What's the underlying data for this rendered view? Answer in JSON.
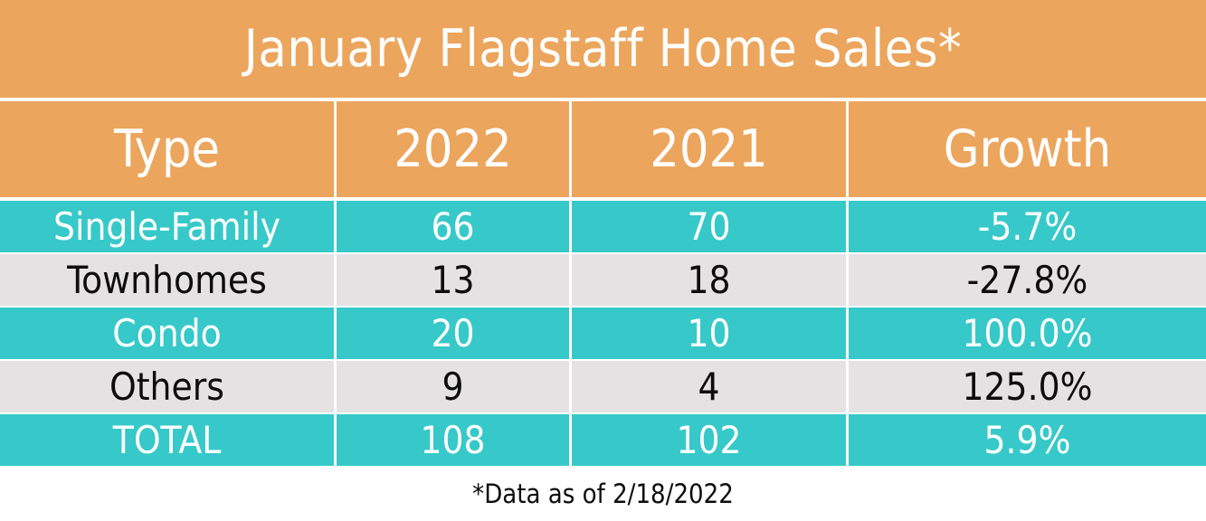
{
  "slide": {
    "title": "January Flagstaff Home Sales*",
    "footnote": "*Data as of 2/18/2022"
  },
  "colors": {
    "orange": "#ECA55C",
    "teal": "#37C9C9",
    "gray": "#E4E2E2",
    "white_text": "#FFFFFF",
    "dark_text": "#0D0D0D"
  },
  "chart_data": {
    "type": "table",
    "title": "January Flagstaff Home Sales*",
    "columns": [
      "Type",
      "2022",
      "2021",
      "Growth"
    ],
    "rows": [
      [
        "Single-Family",
        66,
        70,
        "-5.7%"
      ],
      [
        "Townhomes",
        13,
        18,
        "-27.8%"
      ],
      [
        "Condo",
        20,
        10,
        "100.0%"
      ],
      [
        "Others",
        9,
        4,
        "125.0%"
      ],
      [
        "TOTAL",
        108,
        102,
        "5.9%"
      ]
    ],
    "footnote": "*Data as of 2/18/2022",
    "layout": {
      "row_striping": [
        "teal",
        "gray",
        "teal",
        "gray",
        "teal"
      ],
      "header_background": "orange",
      "grid": "white separators"
    }
  }
}
